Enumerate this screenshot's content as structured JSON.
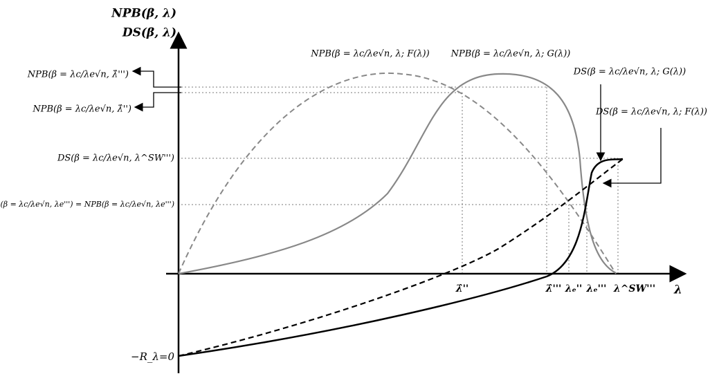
{
  "axes": {
    "y_title": [
      "NPB(β, λ)",
      "DS(β, λ)"
    ],
    "x_title": "λ",
    "y_min_label": "−R_λ=0"
  },
  "x_ticks": [
    "λ̂''",
    "λ̂'''",
    "λₑ''",
    "λₑ'''",
    "λ^SW'''"
  ],
  "left_labels": [
    "NPB(β = λc/λe√n, λ̂''')",
    "NPB(β = λc/λe√n, λ̂'')",
    "DS(β = λc/λe√n, λ^SW''')",
    "DS(β = λc/λe√n, λe''') = NPB(β = λc/λe√n, λe''')"
  ],
  "curve_labels": [
    "NPB(β = λc/λe√n, λ; F(λ))",
    "NPB(β = λc/λe√n, λ; G(λ))",
    "DS(β = λc/λe√n, λ; G(λ))",
    "DS(β = λc/λe√n, λ; F(λ))"
  ]
}
